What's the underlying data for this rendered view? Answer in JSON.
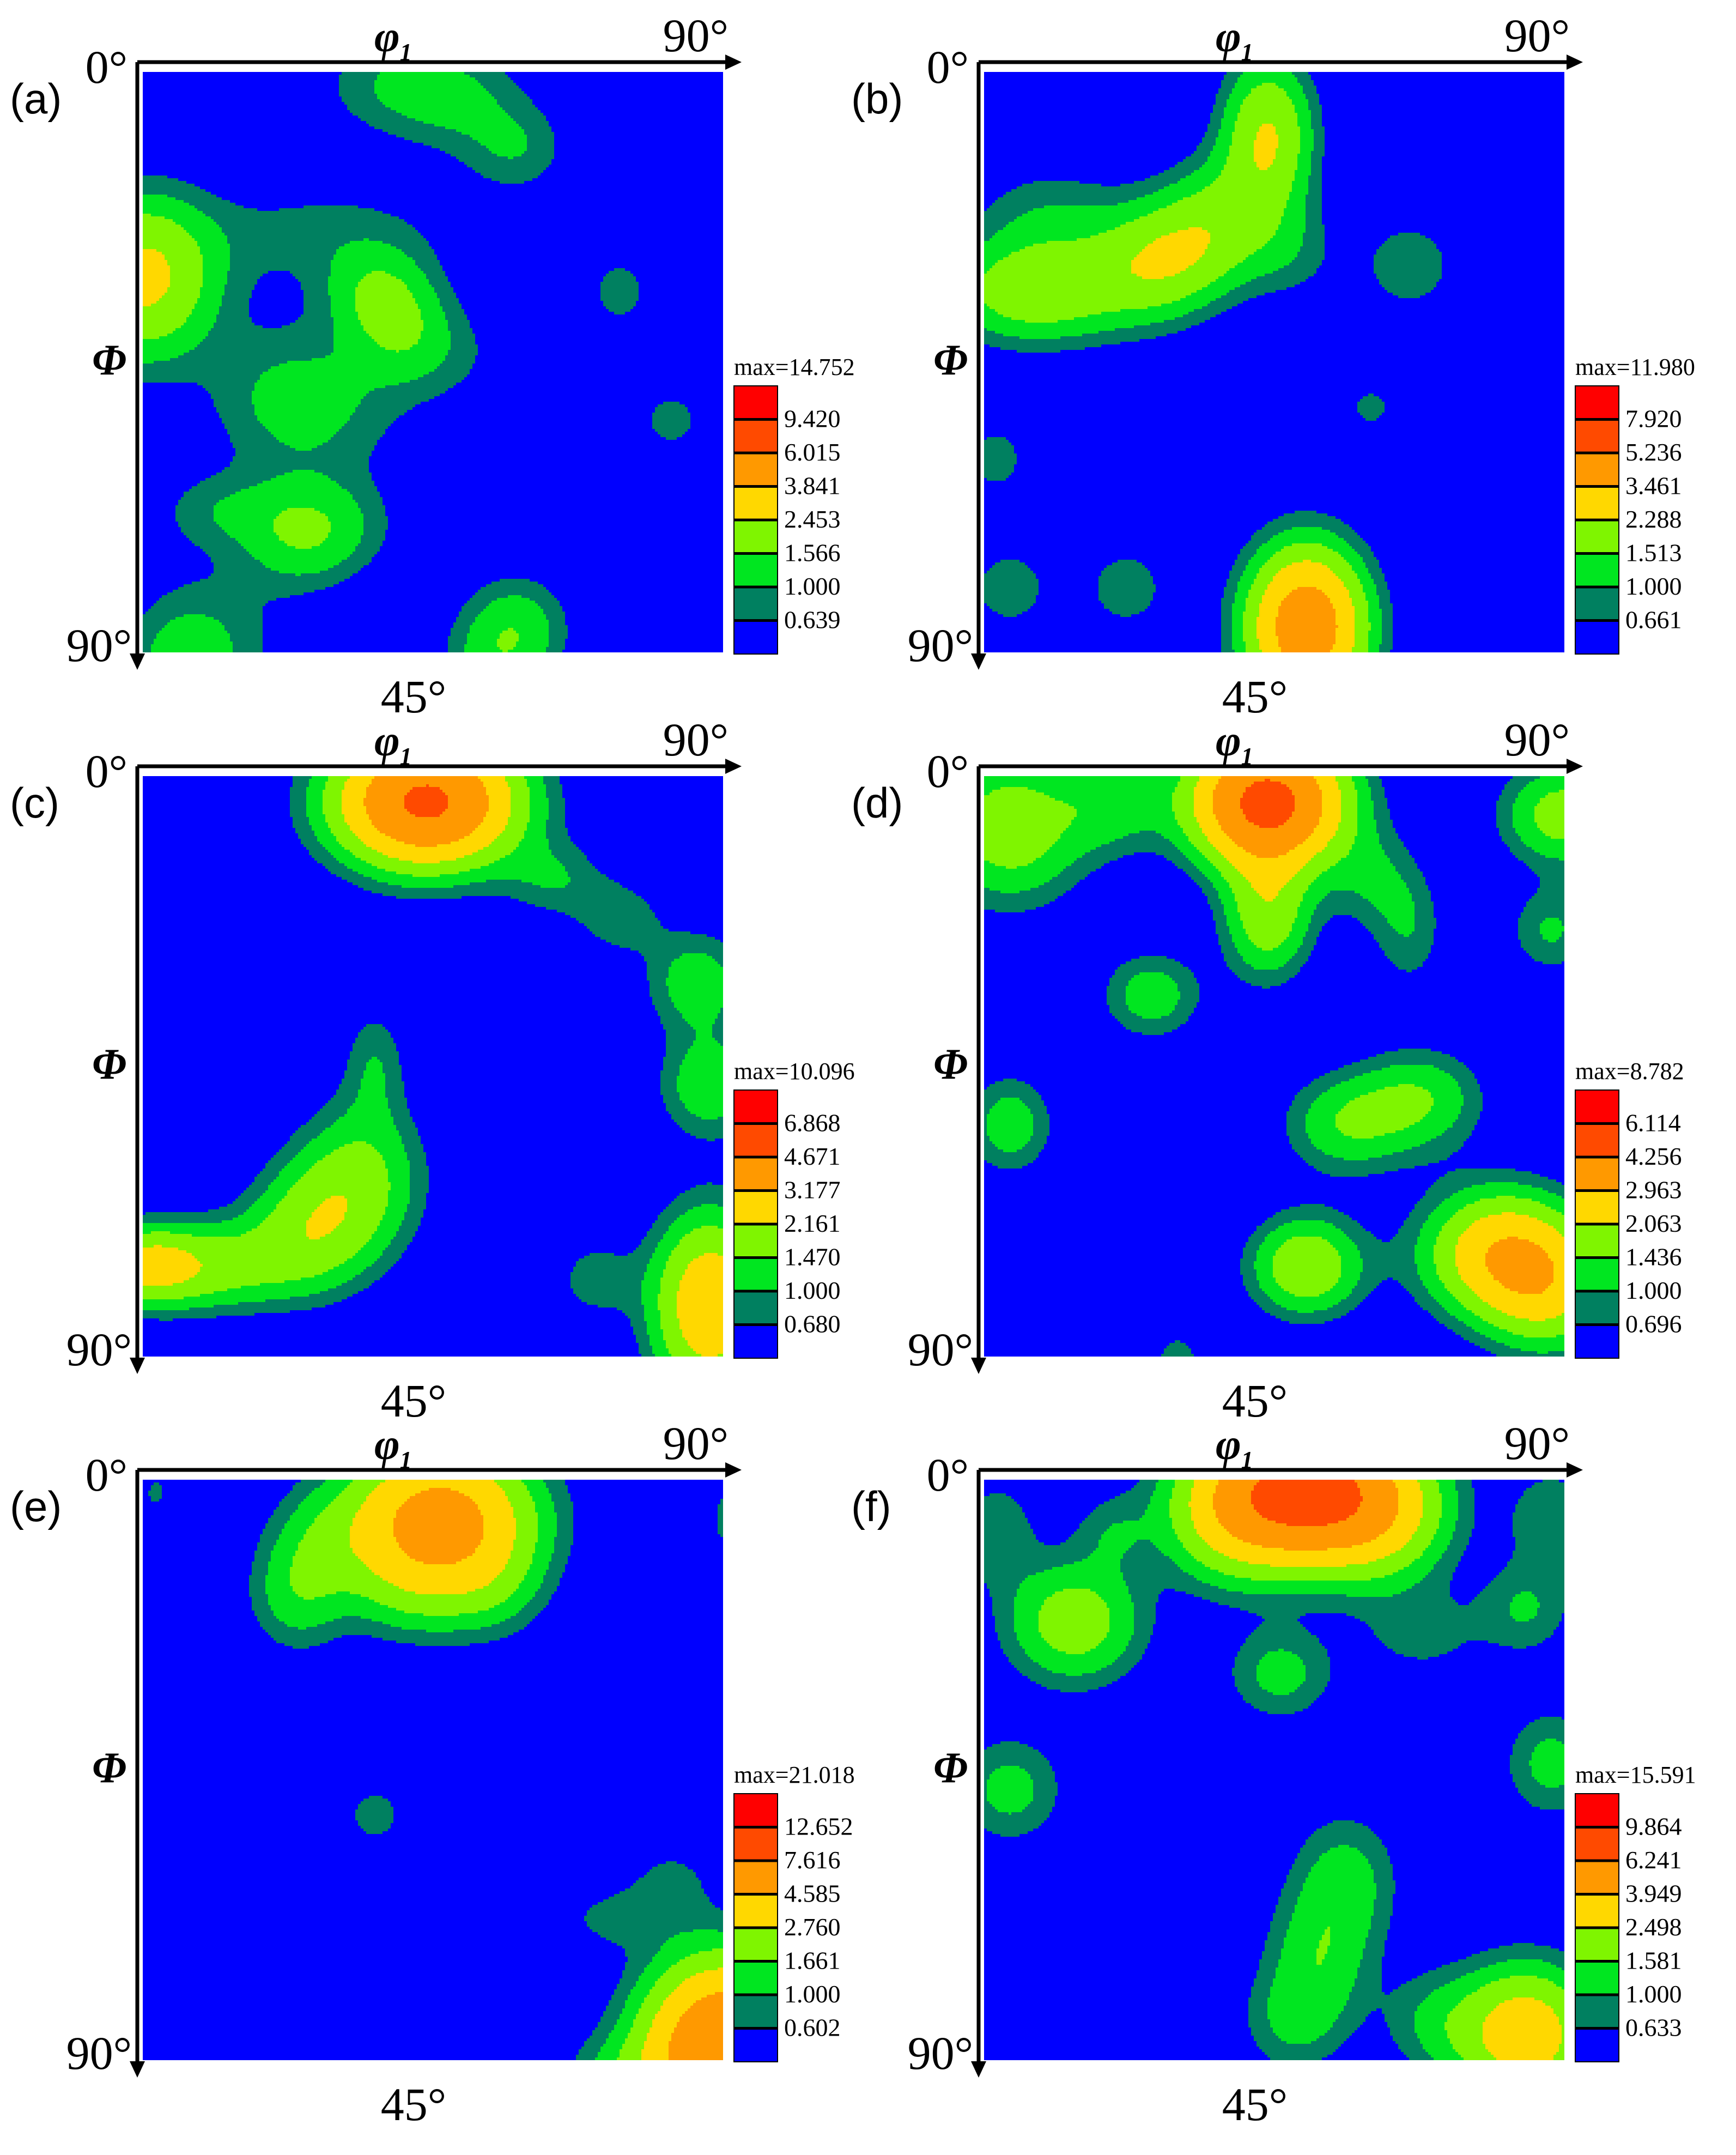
{
  "colors": {
    "c0": "#0000ff",
    "c1": "#008060",
    "c2": "#00e620",
    "c3": "#7ff500",
    "c4": "#ffd800",
    "c5": "#ff9900",
    "c6": "#ff4a00",
    "c7": "#ff0000",
    "line": "#000000"
  },
  "axes": {
    "top_symbol": "φ",
    "top_sub": "1",
    "left_symbol": "Φ",
    "zero": "0°",
    "top_end": "90°",
    "left_end": "90°",
    "bottom_mid": "45°"
  },
  "chart_data": [
    {
      "type": "heatmap",
      "panel": "(a)",
      "x_range": [
        0,
        90
      ],
      "y_range": [
        0,
        90
      ],
      "max_label": "max=14.752",
      "levels": [
        "9.420",
        "6.015",
        "3.841",
        "2.453",
        "1.566",
        "1.000",
        "0.639"
      ],
      "peaks": [
        [
          0,
          32,
          4.0,
          11,
          12
        ],
        [
          10,
          88,
          1.0,
          12,
          12
        ],
        [
          22,
          50,
          0.9,
          12,
          12
        ],
        [
          28,
          52,
          0.9,
          14,
          10
        ],
        [
          40,
          2,
          1.3,
          12,
          8
        ],
        [
          50,
          5,
          0.9,
          10,
          8
        ],
        [
          58,
          12,
          1.1,
          8,
          7
        ],
        [
          28,
          25,
          0.9,
          20,
          8
        ],
        [
          36,
          34,
          1.6,
          8,
          7
        ],
        [
          40,
          40,
          1.6,
          8,
          8
        ],
        [
          48,
          44,
          0.6,
          10,
          8
        ],
        [
          74,
          34,
          0.9,
          6,
          7
        ],
        [
          82,
          54,
          0.9,
          6,
          6
        ],
        [
          24,
          72,
          1.5,
          9,
          8
        ],
        [
          30,
          70,
          1.0,
          10,
          8
        ],
        [
          12,
          68,
          1.0,
          10,
          6
        ],
        [
          58,
          86,
          1.6,
          8,
          8
        ],
        [
          54,
          92,
          1.1,
          8,
          8
        ],
        [
          6,
          92,
          1.1,
          8,
          8
        ]
      ]
    },
    {
      "type": "heatmap",
      "panel": "(b)",
      "x_range": [
        0,
        90
      ],
      "y_range": [
        0,
        90
      ],
      "max_label": "max=11.980",
      "levels": [
        "7.920",
        "5.236",
        "3.461",
        "2.288",
        "1.513",
        "1.000",
        "0.661"
      ],
      "peaks": [
        [
          44,
          10,
          3.2,
          7,
          12
        ],
        [
          8,
          34,
          2.8,
          14,
          8
        ],
        [
          26,
          30,
          2.0,
          10,
          9
        ],
        [
          10,
          22,
          1.0,
          12,
          8
        ],
        [
          32,
          28,
          1.1,
          10,
          8
        ],
        [
          36,
          22,
          1.6,
          9,
          9
        ],
        [
          48,
          28,
          0.8,
          8,
          8
        ],
        [
          66,
          30,
          1.2,
          7,
          7
        ],
        [
          60,
          52,
          1.1,
          3,
          3
        ],
        [
          50,
          86,
          6.5,
          9,
          12
        ],
        [
          22,
          80,
          1.2,
          6,
          6
        ],
        [
          4,
          80,
          1.2,
          6,
          6
        ],
        [
          2,
          60,
          1.0,
          5,
          6
        ]
      ]
    },
    {
      "type": "heatmap",
      "panel": "(c)",
      "x_range": [
        0,
        90
      ],
      "y_range": [
        0,
        90
      ],
      "max_label": "max=10.096",
      "levels": [
        "6.868",
        "4.671",
        "3.177",
        "2.161",
        "1.470",
        "1.000",
        "0.680"
      ],
      "peaks": [
        [
          44,
          4,
          7.0,
          14,
          10
        ],
        [
          34,
          62,
          1.9,
          10,
          12
        ],
        [
          26,
          70,
          2.0,
          10,
          10
        ],
        [
          10,
          76,
          2.2,
          14,
          7
        ],
        [
          0,
          76,
          2.2,
          8,
          6
        ],
        [
          36,
          44,
          1.0,
          5,
          9
        ],
        [
          64,
          16,
          1.0,
          8,
          6
        ],
        [
          74,
          22,
          1.0,
          7,
          6
        ],
        [
          86,
          32,
          1.6,
          8,
          8
        ],
        [
          88,
          48,
          1.7,
          8,
          8
        ],
        [
          88,
          82,
          4.0,
          9,
          14
        ],
        [
          70,
          78,
          1.0,
          6,
          6
        ]
      ]
    },
    {
      "type": "heatmap",
      "panel": "(d)",
      "x_range": [
        0,
        90
      ],
      "y_range": [
        0,
        90
      ],
      "max_label": "max=8.782",
      "levels": [
        "6.114",
        "4.256",
        "2.963",
        "2.063",
        "1.436",
        "1.000",
        "0.696"
      ],
      "peaks": [
        [
          44,
          4,
          6.5,
          12,
          10
        ],
        [
          44,
          22,
          2.2,
          7,
          10
        ],
        [
          4,
          8,
          2.3,
          12,
          12
        ],
        [
          20,
          4,
          1.2,
          8,
          8
        ],
        [
          26,
          34,
          1.5,
          8,
          7
        ],
        [
          60,
          16,
          0.9,
          7,
          8
        ],
        [
          66,
          24,
          1.0,
          6,
          10
        ],
        [
          90,
          6,
          2.2,
          10,
          8
        ],
        [
          88,
          24,
          1.2,
          7,
          7
        ],
        [
          56,
          54,
          1.6,
          10,
          8
        ],
        [
          68,
          50,
          1.6,
          10,
          8
        ],
        [
          50,
          76,
          2.5,
          9,
          8
        ],
        [
          80,
          74,
          3.5,
          12,
          10
        ],
        [
          88,
          80,
          2.2,
          10,
          10
        ],
        [
          4,
          54,
          1.5,
          7,
          8
        ],
        [
          30,
          90,
          1.0,
          4,
          4
        ]
      ]
    },
    {
      "type": "heatmap",
      "panel": "(e)",
      "x_range": [
        0,
        90
      ],
      "y_range": [
        0,
        90
      ],
      "max_label": "max=21.018",
      "levels": [
        "12.652",
        "7.616",
        "4.585",
        "2.760",
        "1.661",
        "1.000",
        "0.602"
      ],
      "peaks": [
        [
          46,
          6,
          9.0,
          13,
          10
        ],
        [
          42,
          16,
          2.0,
          10,
          8
        ],
        [
          54,
          16,
          1.5,
          8,
          8
        ],
        [
          24,
          18,
          1.8,
          7,
          8
        ],
        [
          28,
          10,
          1.6,
          8,
          8
        ],
        [
          36,
          52,
          1.0,
          5,
          5
        ],
        [
          82,
          62,
          0.8,
          7,
          6
        ],
        [
          74,
          68,
          0.9,
          10,
          5
        ],
        [
          90,
          88,
          12.0,
          11,
          12
        ],
        [
          76,
          92,
          1.4,
          10,
          6
        ],
        [
          2,
          2,
          0.9,
          2,
          3
        ],
        [
          90,
          6,
          0.9,
          2,
          6
        ]
      ]
    },
    {
      "type": "heatmap",
      "panel": "(f)",
      "x_range": [
        0,
        90
      ],
      "y_range": [
        0,
        90
      ],
      "max_label": "max=15.591",
      "levels": [
        "9.864",
        "6.241",
        "3.949",
        "2.498",
        "1.581",
        "1.000",
        "0.633"
      ],
      "peaks": [
        [
          50,
          2,
          11.0,
          14,
          10
        ],
        [
          38,
          6,
          2.5,
          10,
          10
        ],
        [
          62,
          6,
          2.5,
          10,
          10
        ],
        [
          14,
          22,
          3.0,
          10,
          9
        ],
        [
          2,
          8,
          1.2,
          6,
          8
        ],
        [
          20,
          8,
          1.0,
          6,
          6
        ],
        [
          46,
          30,
          1.6,
          8,
          7
        ],
        [
          68,
          24,
          0.9,
          10,
          7
        ],
        [
          84,
          20,
          1.3,
          7,
          7
        ],
        [
          88,
          6,
          1.2,
          7,
          8
        ],
        [
          88,
          44,
          1.6,
          7,
          8
        ],
        [
          4,
          48,
          1.6,
          8,
          8
        ],
        [
          56,
          62,
          1.6,
          8,
          10
        ],
        [
          52,
          74,
          1.7,
          8,
          10
        ],
        [
          48,
          84,
          1.3,
          8,
          8
        ],
        [
          84,
          86,
          5.0,
          10,
          10
        ],
        [
          70,
          84,
          1.2,
          8,
          8
        ]
      ]
    }
  ]
}
